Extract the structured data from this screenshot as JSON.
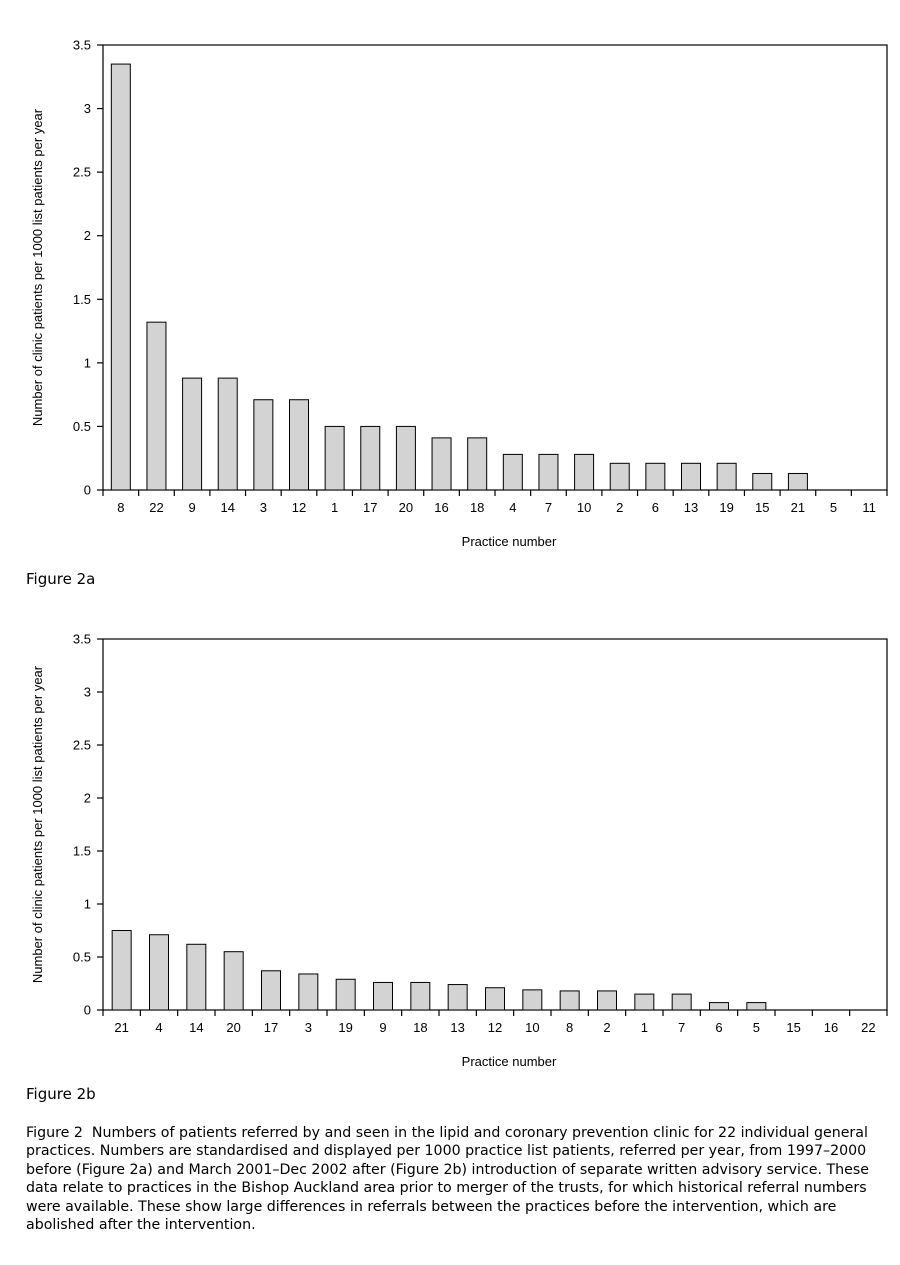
{
  "figures": [
    {
      "label": "Figure 2a"
    },
    {
      "label": "Figure 2b"
    }
  ],
  "caption": {
    "label": "Figure 2",
    "text": "Numbers of patients referred by and seen in the lipid and coronary prevention clinic for 22 individual general practices. Numbers are standardised and displayed per 1000 practice list patients, referred per year, from 1997–2000 before (Figure 2a) and March 2001–Dec 2002 after (Figure 2b) introduction of separate written advisory service. These data relate to practices in the Bishop Auckland area prior to merger of the trusts, for which historical referral numbers were available. These show large differences in referrals between the practices before the intervention, which are abolished after the intervention."
  },
  "chart_data": [
    {
      "type": "bar",
      "title": "",
      "xlabel": "Practice number",
      "ylabel": "Number of clinic patients per 1000 list patients per year",
      "ylim": [
        0,
        3.5
      ],
      "yticks": [
        "0",
        "0.5",
        "1",
        "1.5",
        "2",
        "2.5",
        "3",
        "3.5"
      ],
      "categories": [
        "8",
        "22",
        "9",
        "14",
        "3",
        "12",
        "1",
        "17",
        "20",
        "16",
        "18",
        "4",
        "7",
        "10",
        "2",
        "6",
        "13",
        "19",
        "15",
        "21",
        "5",
        "11"
      ],
      "values": [
        3.35,
        1.32,
        0.88,
        0.88,
        0.71,
        0.71,
        0.5,
        0.5,
        0.5,
        0.41,
        0.41,
        0.28,
        0.28,
        0.28,
        0.21,
        0.21,
        0.21,
        0.21,
        0.13,
        0.13,
        0,
        0
      ],
      "bar_color": "#d3d3d3",
      "grid": false
    },
    {
      "type": "bar",
      "title": "",
      "xlabel": "Practice number",
      "ylabel": "Number of clinic patients per 1000 list patients per year",
      "ylim": [
        0,
        3.5
      ],
      "yticks": [
        "0",
        "0.5",
        "1",
        "1.5",
        "2",
        "2.5",
        "3",
        "3.5"
      ],
      "categories": [
        "21",
        "4",
        "14",
        "20",
        "17",
        "3",
        "19",
        "9",
        "18",
        "13",
        "12",
        "10",
        "8",
        "2",
        "1",
        "7",
        "6",
        "5",
        "15",
        "16",
        "22"
      ],
      "values": [
        0.75,
        0.71,
        0.62,
        0.55,
        0.37,
        0.34,
        0.29,
        0.26,
        0.26,
        0.24,
        0.21,
        0.19,
        0.18,
        0.18,
        0.15,
        0.15,
        0.07,
        0.07,
        0,
        0,
        0
      ],
      "bar_color": "#d3d3d3",
      "grid": false
    }
  ]
}
